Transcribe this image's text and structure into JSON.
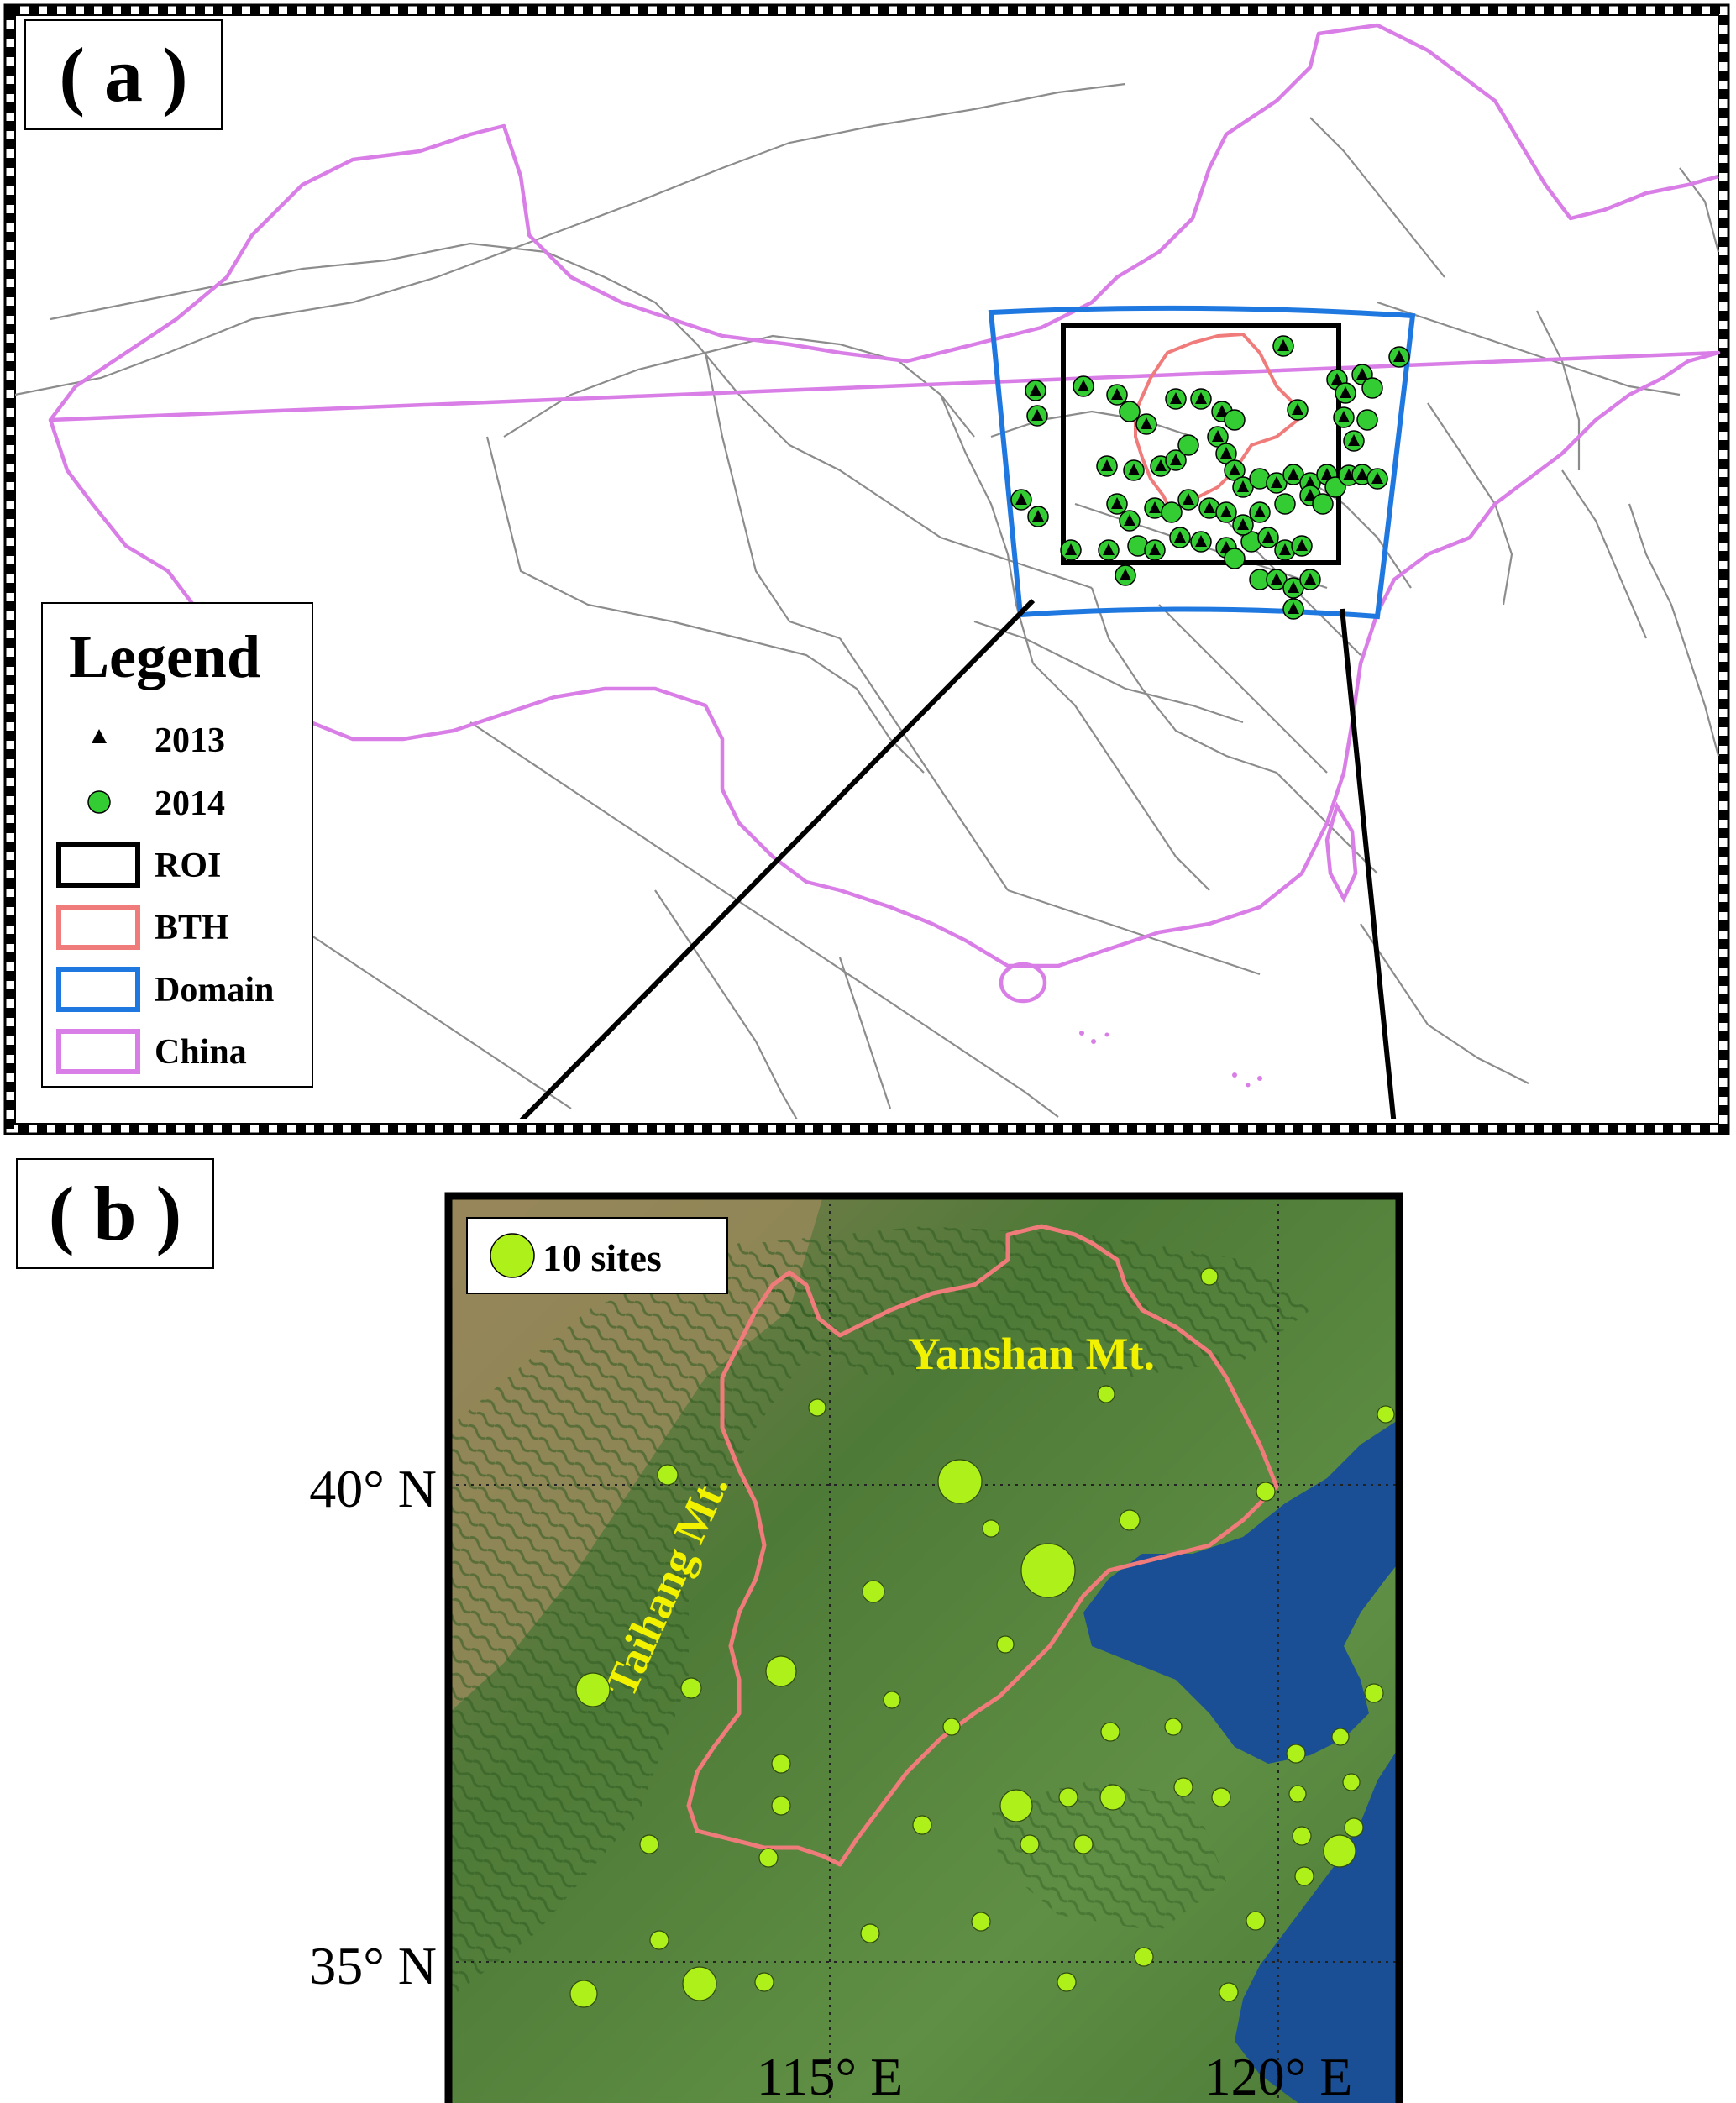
{
  "panel_a": {
    "label": "( a )",
    "legend": {
      "title": "Legend",
      "items": [
        {
          "label": "2013",
          "symbol": "triangle",
          "color": "#000000"
        },
        {
          "label": "2014",
          "symbol": "circle",
          "color": "#33cc33"
        },
        {
          "label": "ROI",
          "symbol": "box",
          "color": "#000000"
        },
        {
          "label": "BTH",
          "symbol": "box",
          "color": "#f07b7b"
        },
        {
          "label": "Domain",
          "symbol": "box",
          "color": "#1f78e0"
        },
        {
          "label": "China",
          "symbol": "box",
          "color": "#d97ee6"
        }
      ]
    }
  },
  "panel_b": {
    "label": "( b )",
    "size_legend": "10 sites",
    "mountains": [
      "Yanshan Mt.",
      "Taihang Mt."
    ],
    "lat_labels": [
      "40° N",
      "35° N"
    ],
    "lon_labels": [
      "115° E",
      "120° E"
    ]
  },
  "colors": {
    "china_border": "#d97ee6",
    "province_lines": "#8c8c8c",
    "roi": "#000000",
    "bth": "#f07b7b",
    "domain": "#1f78e0",
    "site_2014": "#33cc33",
    "site_marker_b": "#aef019",
    "sea": "#1a4f95",
    "land": "#4f7d3a",
    "mountain_label": "#f2f200"
  }
}
